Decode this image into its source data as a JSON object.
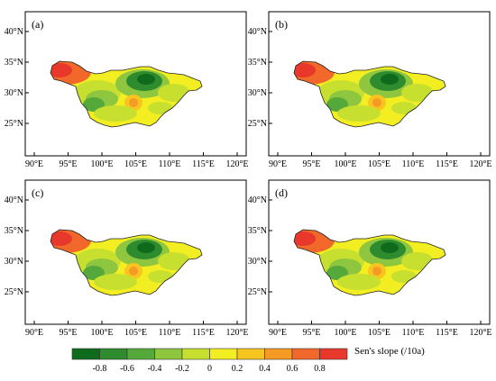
{
  "figure": {
    "panels": [
      {
        "id": "a",
        "label": "(a)"
      },
      {
        "id": "b",
        "label": "(b)"
      },
      {
        "id": "c",
        "label": "(c)"
      },
      {
        "id": "d",
        "label": "(d)"
      }
    ],
    "x_ticks": [
      "90°E",
      "95°E",
      "100°E",
      "105°E",
      "110°E",
      "115°E",
      "120°E"
    ],
    "y_ticks": [
      "40°N",
      "35°N",
      "30°N",
      "25°N"
    ],
    "colorbar": {
      "title": "Sen's slope (/10a)",
      "tick_labels": [
        "-0.8",
        "-0.6",
        "-0.4",
        "-0.2",
        "0",
        "0.2",
        "0.4",
        "0.6",
        "0.8"
      ],
      "colors": [
        "#0d6b1b",
        "#2e8b2e",
        "#55a93a",
        "#8ec63f",
        "#c7e02f",
        "#f2ee22",
        "#f7c420",
        "#f59a25",
        "#f2672a",
        "#e8382b"
      ]
    }
  }
}
